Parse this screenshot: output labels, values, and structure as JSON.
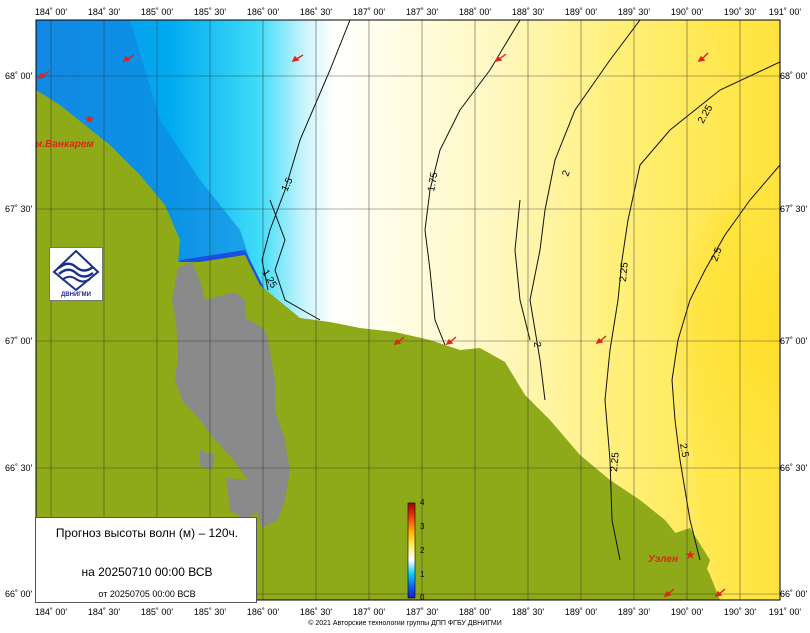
{
  "map": {
    "lon_labels": [
      "184˚ 00'",
      "184˚ 30'",
      "185˚ 00'",
      "185˚ 30'",
      "186˚ 00'",
      "186˚ 30'",
      "187˚ 00'",
      "187˚ 30'",
      "188˚ 00'",
      "188˚ 30'",
      "189˚ 00'",
      "189˚ 30'",
      "190˚ 00'",
      "190˚ 30'",
      "191˚ 00'"
    ],
    "lat_labels": [
      "68˚ 00'",
      "67˚ 30'",
      "67˚ 00'",
      "66˚ 30'",
      "66˚ 00'"
    ],
    "places": {
      "vankarem": "м.Ванкарем",
      "uelen": "Уэлен"
    },
    "isolines": [
      "1.25",
      "1.5",
      "1.75",
      "2",
      "2",
      "2.25",
      "2.25",
      "2.25",
      "2.5",
      "2.5"
    ],
    "colors": {
      "land": "#8eaa18",
      "lagoon": "#8a8a8a",
      "sea_deep_blue": "#1a5ee0",
      "sea_cyan": "#00c8f0",
      "sea_white": "#ffffff",
      "sea_pale_yellow": "#fffbcc",
      "sea_yellow": "#ffe000",
      "arrow": "#e0241b"
    }
  },
  "scale": {
    "labels": [
      "4",
      "3",
      "2",
      "1",
      "0"
    ]
  },
  "logo": {
    "label": "ДВНИГМИ"
  },
  "infobox": {
    "title": "Прогноз высоты волн (м) – 120ч.",
    "valid": "на 20250710 00:00 ВСВ",
    "issued": "от 20250705 00:00 ВСВ"
  },
  "footer": "© 2021 Авторские технологии группы ДПП ФГБУ ДВНИГМИ"
}
